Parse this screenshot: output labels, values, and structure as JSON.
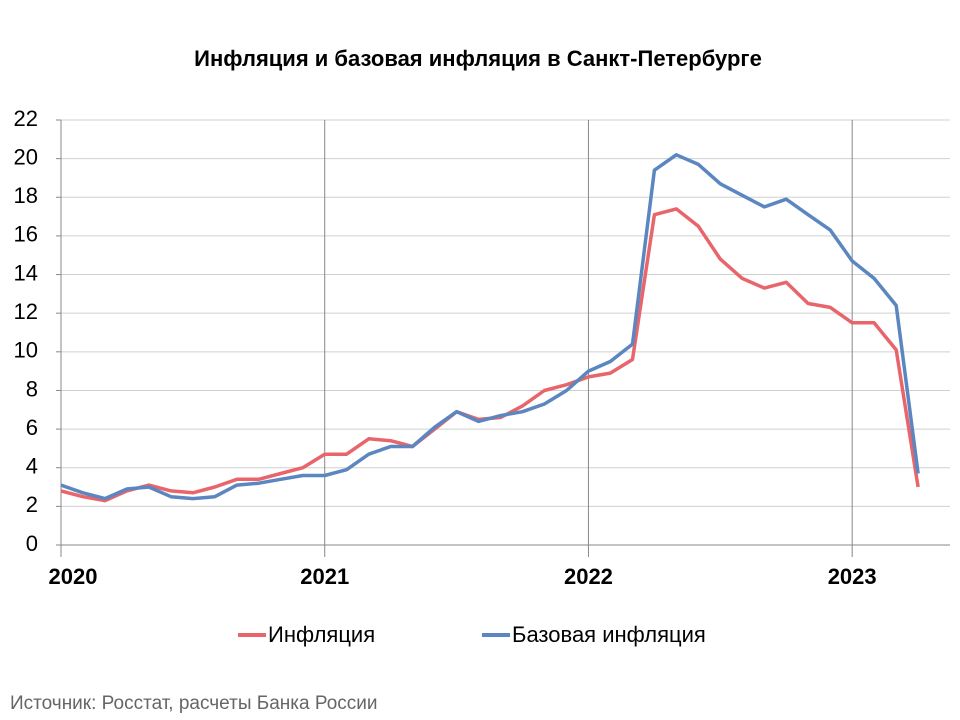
{
  "chart_data": {
    "type": "line",
    "title": "Инфляция и базовая инфляция в Санкт-Петербурге",
    "source": "Источник: Росстат, расчеты Банка России",
    "x": [
      2020,
      2020.083,
      2020.167,
      2020.25,
      2020.333,
      2020.417,
      2020.5,
      2020.583,
      2020.667,
      2020.75,
      2020.833,
      2020.917,
      2021,
      2021.083,
      2021.167,
      2021.25,
      2021.333,
      2021.417,
      2021.5,
      2021.583,
      2021.667,
      2021.75,
      2021.833,
      2021.917,
      2022,
      2022.083,
      2022.167,
      2022.25,
      2022.333,
      2022.417,
      2022.5,
      2022.583,
      2022.667,
      2022.75,
      2022.833,
      2022.917,
      2023,
      2023.083,
      2023.167,
      2023.25
    ],
    "series": [
      {
        "name": "Инфляция",
        "color": "#e8666b",
        "values": [
          2.8,
          2.5,
          2.3,
          2.8,
          3.1,
          2.8,
          2.7,
          3.0,
          3.4,
          3.4,
          3.7,
          4.0,
          4.7,
          4.7,
          5.5,
          5.4,
          5.1,
          6.0,
          6.9,
          6.5,
          6.6,
          7.2,
          8.0,
          8.3,
          8.7,
          8.9,
          9.6,
          17.1,
          17.4,
          16.5,
          14.8,
          13.8,
          13.3,
          13.6,
          12.5,
          12.3,
          11.5,
          11.5,
          10.1,
          3.0
        ]
      },
      {
        "name": "Базовая инфляция",
        "color": "#5b86c0",
        "values": [
          3.1,
          2.7,
          2.4,
          2.9,
          3.0,
          2.5,
          2.4,
          2.5,
          3.1,
          3.2,
          3.4,
          3.6,
          3.6,
          3.9,
          4.7,
          5.1,
          5.1,
          6.1,
          6.9,
          6.4,
          6.7,
          6.9,
          7.3,
          8.0,
          9.0,
          9.5,
          10.4,
          19.4,
          20.2,
          19.7,
          18.7,
          18.1,
          17.5,
          17.9,
          17.1,
          16.3,
          14.7,
          13.8,
          12.4,
          3.7
        ]
      }
    ],
    "xlim": [
      2020,
      2023.333
    ],
    "xticks": [
      2020,
      2021,
      2022,
      2023
    ],
    "ylim": [
      0,
      22
    ],
    "yticks": [
      0,
      2,
      4,
      6,
      8,
      10,
      12,
      14,
      16,
      18,
      20,
      22
    ],
    "grid": true
  }
}
